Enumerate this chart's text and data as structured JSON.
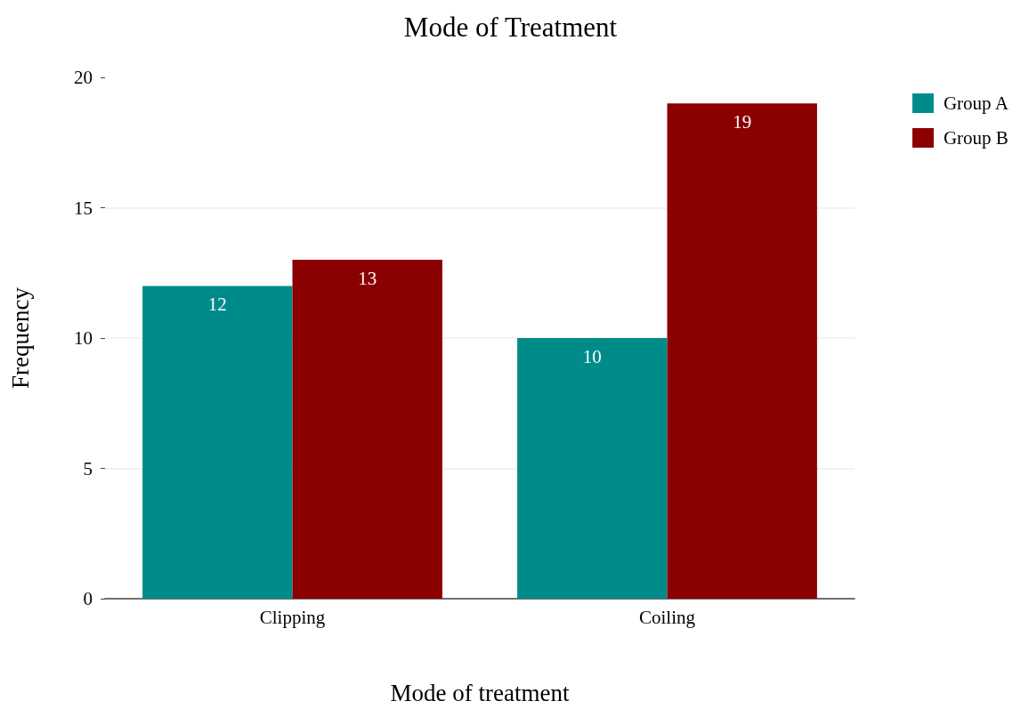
{
  "chart_data": {
    "type": "bar",
    "title": "Mode of Treatment",
    "xlabel": "Mode of treatment",
    "ylabel": "Frequency",
    "categories": [
      "Clipping",
      "Coiling"
    ],
    "series": [
      {
        "name": "Group A",
        "color": "#008b8b",
        "values": [
          12,
          10
        ]
      },
      {
        "name": "Group B",
        "color": "#8b0000",
        "values": [
          13,
          19
        ]
      }
    ],
    "ylim": [
      0,
      20
    ],
    "yticks": [
      0,
      5,
      10,
      15,
      20
    ],
    "grid": "y",
    "legend": "top right",
    "data_labels": true
  }
}
